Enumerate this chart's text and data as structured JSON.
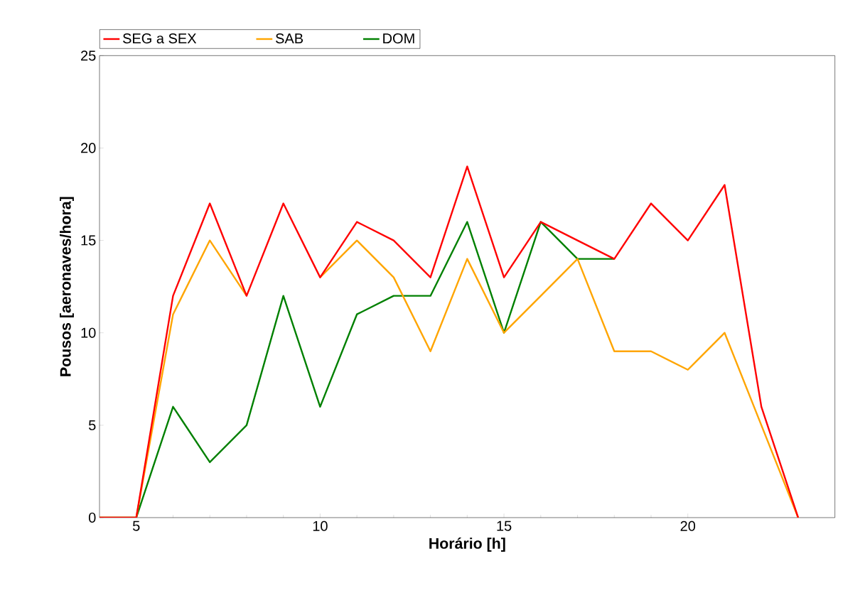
{
  "chart_data": {
    "type": "line",
    "xlabel": "Horário [h]",
    "ylabel": "Pousos [aeronaves/hora]",
    "x": [
      4,
      5,
      6,
      7,
      8,
      9,
      10,
      11,
      12,
      13,
      14,
      15,
      16,
      17,
      18,
      19,
      20,
      21,
      22,
      23
    ],
    "xlim": [
      4,
      24
    ],
    "xticks": [
      5,
      10,
      15,
      20
    ],
    "ylim": [
      0,
      25
    ],
    "yticks": [
      0,
      5,
      10,
      15,
      20,
      25
    ],
    "grid": false,
    "legend": "top",
    "marker": "none",
    "line_style": "solid",
    "series": [
      {
        "name": "SEG a SEX",
        "color": "#ff0000",
        "values": [
          0,
          0,
          12,
          17,
          12,
          17,
          13,
          16,
          15,
          13,
          19,
          13,
          16,
          15,
          14,
          17,
          15,
          18,
          6,
          0
        ]
      },
      {
        "name": "SAB",
        "color": "#ffa500",
        "values": [
          0,
          0,
          11,
          15,
          12,
          null,
          13,
          15,
          13,
          9,
          14,
          10,
          12,
          14,
          9,
          9,
          8,
          10,
          5,
          0
        ]
      },
      {
        "name": "DOM",
        "color": "#008000",
        "values": [
          0,
          0,
          6,
          3,
          5,
          12,
          6,
          11,
          12,
          12,
          16,
          10,
          16,
          14,
          14,
          null,
          null,
          null,
          null,
          null
        ]
      }
    ]
  }
}
